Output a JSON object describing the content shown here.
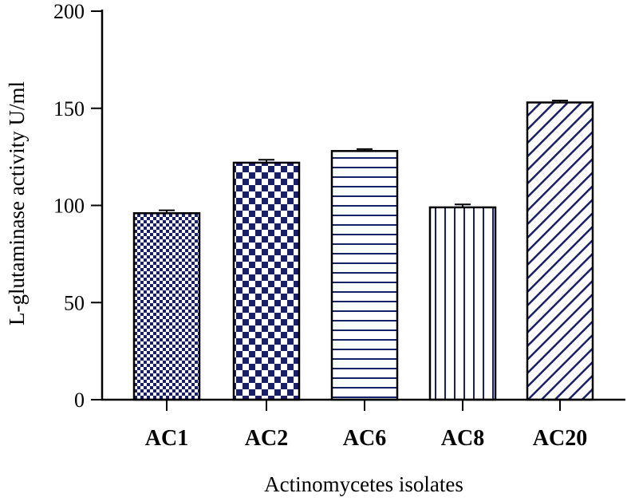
{
  "chart_data": {
    "type": "bar",
    "title": "",
    "xlabel": "Actinomycetes isolates",
    "ylabel": "L-glutaminase activity U/ml",
    "ylim": [
      0,
      200
    ],
    "yticks": [
      0,
      50,
      100,
      150,
      200
    ],
    "categories": [
      "AC1",
      "AC2",
      "AC6",
      "AC8",
      "AC20"
    ],
    "values": [
      96,
      122,
      128,
      99,
      153
    ],
    "errors": [
      1.5,
      1.5,
      1,
      1.5,
      1
    ],
    "patterns": [
      "fine-checker",
      "large-checker",
      "horizontal-lines",
      "vertical-lines",
      "diagonal-lines"
    ],
    "colors": {
      "bar_pattern": "#1a1f6b",
      "axis": "#000000",
      "background": "#ffffff"
    },
    "grid": false
  }
}
